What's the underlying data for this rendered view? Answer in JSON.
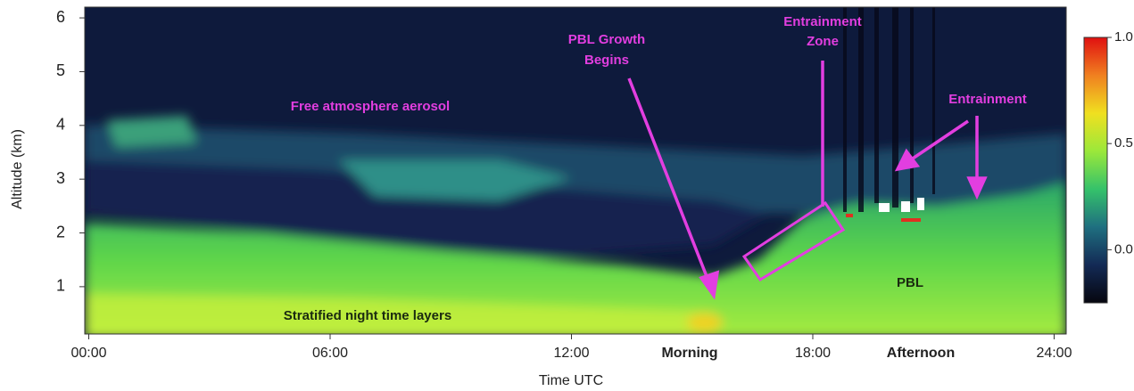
{
  "chart_data": {
    "type": "heatmap",
    "xlabel": "Time UTC",
    "ylabel": "Altitude (km)",
    "xlim": [
      -0.1,
      24.3
    ],
    "ylim": [
      0.12,
      6.2
    ],
    "xticks": [
      {
        "value": 0,
        "label": "00:00"
      },
      {
        "value": 6,
        "label": "06:00"
      },
      {
        "value": 12,
        "label": "12:00"
      },
      {
        "value": 18,
        "label": "18:00"
      },
      {
        "value": 24,
        "label": "24:00"
      }
    ],
    "yticks": [
      1,
      2,
      3,
      4,
      5,
      6
    ],
    "colorbar": {
      "clim": [
        -0.25,
        1.0
      ],
      "ticks": [
        {
          "value": 1.0,
          "label": "1.0"
        },
        {
          "value": 0.5,
          "label": "0.5"
        },
        {
          "value": 0.0,
          "label": "0.0"
        }
      ],
      "colormap": [
        "#06060f",
        "#132a55",
        "#1f6f80",
        "#35c26a",
        "#9be83a",
        "#f0e020",
        "#f08020",
        "#e01010"
      ]
    },
    "time_labels": [
      "Morning",
      "Afternoon"
    ],
    "annotations": {
      "free": "Free atmosphere aerosol",
      "pbl_growth": [
        "PBL Growth",
        "Begins"
      ],
      "entrainment_zone": [
        "Entrainment",
        "Zone"
      ],
      "entrainment": "Entrainment",
      "stratified": "Stratified night time layers",
      "pbl": "PBL"
    }
  }
}
